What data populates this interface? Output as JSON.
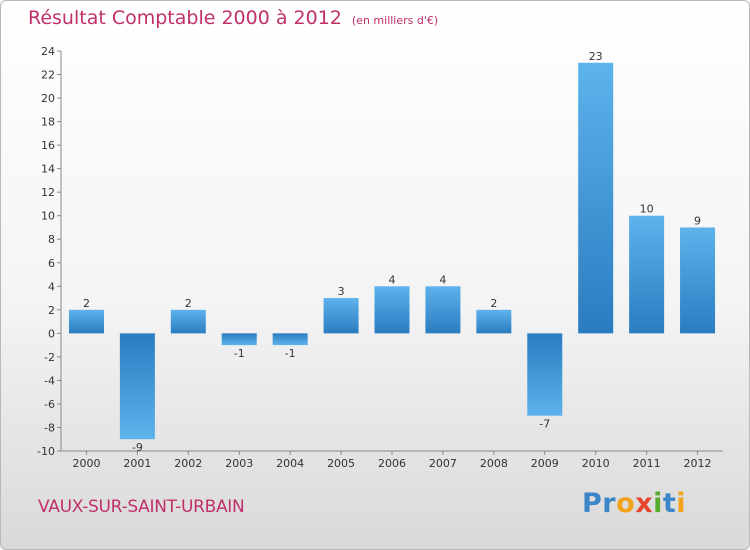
{
  "chart_data": {
    "type": "bar",
    "title": "Résultat Comptable 2000 à 2012",
    "subtitle": "(en milliers d'€)",
    "categories": [
      "2000",
      "2001",
      "2002",
      "2003",
      "2004",
      "2005",
      "2006",
      "2007",
      "2008",
      "2009",
      "2010",
      "2011",
      "2012"
    ],
    "values": [
      2,
      -9,
      2,
      -1,
      -1,
      3,
      4,
      4,
      2,
      -7,
      23,
      10,
      9
    ],
    "ylim": [
      -10,
      24
    ],
    "yticks": [
      -10,
      -8,
      -6,
      -4,
      -2,
      0,
      2,
      4,
      6,
      8,
      10,
      12,
      14,
      16,
      18,
      20,
      22,
      24
    ],
    "grid": false,
    "bar_color": "#4a9fdc"
  },
  "footer": {
    "commune": "VAUX-SUR-SAINT-URBAIN",
    "logo_letters": [
      {
        "ch": "P",
        "color": "#3a86c8"
      },
      {
        "ch": "r",
        "color": "#3a86c8"
      },
      {
        "ch": "o",
        "color": "#f2a21b"
      },
      {
        "ch": "x",
        "color": "#e8462e"
      },
      {
        "ch": "i",
        "color": "#5aac2e"
      },
      {
        "ch": "t",
        "color": "#3a86c8"
      },
      {
        "ch": "i",
        "color": "#f2a21b"
      }
    ]
  }
}
